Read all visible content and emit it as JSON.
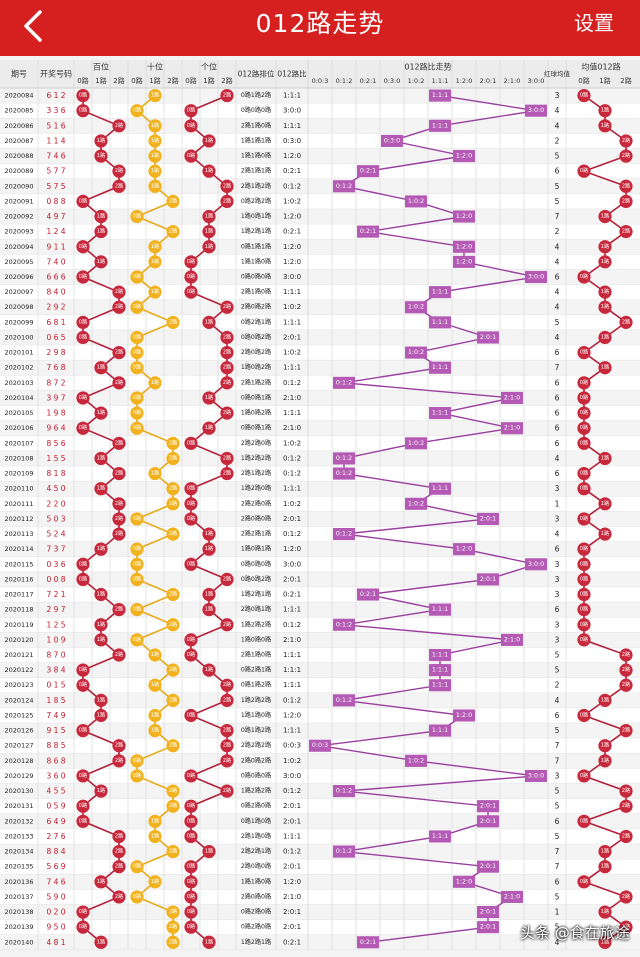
{
  "app": {
    "title": "012路走势",
    "settings_label": "设置"
  },
  "watermark": "头条 @食在旅途",
  "colors": {
    "header": "#d61f1f",
    "red_ball": "#c8283c",
    "yellow_ball": "#f2b21d",
    "purple_cell": "#b45ab4",
    "red_line": "#b0213a",
    "gold_line": "#e6aa1a",
    "purple_line": "#9a3f9f"
  },
  "table": {
    "col_issue": "期号",
    "col_numbers": "开奖号码",
    "group_hundreds": "百位",
    "group_tens": "十位",
    "group_units": "个位",
    "col_pattern": "012路排位",
    "col_ratio": "012路比",
    "group_ratio_trend": "012路比走势",
    "col_redball": "红球均值",
    "group_avg": "均值012路",
    "sub_route": [
      "0路",
      "1路",
      "2路"
    ],
    "ratio_types": [
      "0:0:3",
      "0:1:2",
      "0:2:1",
      "0:3:0",
      "1:0:2",
      "1:1:1",
      "1:2:0",
      "2:0:1",
      "2:1:0",
      "3:0:0"
    ],
    "route_names": [
      "0路",
      "1路",
      "2路"
    ],
    "rows": [
      {
        "issue": "2020084",
        "nums": "6 1 2",
        "ratio_idx": 5,
        "ratio": "1:1:1",
        "pattern": "0路1路2路",
        "avg": "3",
        "avg_route": 0
      },
      {
        "issue": "2020085",
        "nums": "3 3 6",
        "ratio_idx": 9,
        "ratio": "3:0:0",
        "pattern": "0路0路0路",
        "avg": "4",
        "avg_route": 1
      },
      {
        "issue": "2020086",
        "nums": "5 1 6",
        "ratio_idx": 5,
        "ratio": "1:1:1",
        "pattern": "2路1路0路",
        "avg": "4",
        "avg_route": 1
      },
      {
        "issue": "2020087",
        "nums": "1 1 4",
        "ratio_idx": 3,
        "ratio": "0:3:0",
        "pattern": "1路1路1路",
        "avg": "2",
        "avg_route": 2
      },
      {
        "issue": "2020088",
        "nums": "7 4 6",
        "ratio_idx": 6,
        "ratio": "1:2:0",
        "pattern": "1路1路0路",
        "avg": "5",
        "avg_route": 2
      },
      {
        "issue": "2020089",
        "nums": "5 7 7",
        "ratio_idx": 2,
        "ratio": "0:2:1",
        "pattern": "2路1路1路",
        "avg": "6",
        "avg_route": 0
      },
      {
        "issue": "2020090",
        "nums": "5 7 5",
        "ratio_idx": 1,
        "ratio": "0:1:2",
        "pattern": "2路1路2路",
        "avg": "5",
        "avg_route": 2
      },
      {
        "issue": "2020091",
        "nums": "0 8 8",
        "ratio_idx": 4,
        "ratio": "1:0:2",
        "pattern": "0路2路2路",
        "avg": "5",
        "avg_route": 2
      },
      {
        "issue": "2020092",
        "nums": "4 9 7",
        "ratio_idx": 6,
        "ratio": "1:2:0",
        "pattern": "1路0路1路",
        "avg": "7",
        "avg_route": 1
      },
      {
        "issue": "2020093",
        "nums": "1 2 4",
        "ratio_idx": 2,
        "ratio": "0:2:1",
        "pattern": "1路2路1路",
        "avg": "2",
        "avg_route": 2
      },
      {
        "issue": "2020094",
        "nums": "9 1 1",
        "ratio_idx": 6,
        "ratio": "1:2:0",
        "pattern": "0路1路1路",
        "avg": "4",
        "avg_route": 1
      },
      {
        "issue": "2020095",
        "nums": "7 4 0",
        "ratio_idx": 6,
        "ratio": "1:2:0",
        "pattern": "1路1路0路",
        "avg": "4",
        "avg_route": 1
      },
      {
        "issue": "2020096",
        "nums": "6 6 6",
        "ratio_idx": 9,
        "ratio": "3:0:0",
        "pattern": "0路0路0路",
        "avg": "6",
        "avg_route": 0
      },
      {
        "issue": "2020097",
        "nums": "8 4 0",
        "ratio_idx": 5,
        "ratio": "1:1:1",
        "pattern": "2路1路0路",
        "avg": "4",
        "avg_route": 1
      },
      {
        "issue": "2020098",
        "nums": "2 9 2",
        "ratio_idx": 4,
        "ratio": "1:0:2",
        "pattern": "2路0路2路",
        "avg": "4",
        "avg_route": 1
      },
      {
        "issue": "2020099",
        "nums": "6 8 1",
        "ratio_idx": 5,
        "ratio": "1:1:1",
        "pattern": "0路2路1路",
        "avg": "5",
        "avg_route": 2
      },
      {
        "issue": "2020100",
        "nums": "0 6 5",
        "ratio_idx": 7,
        "ratio": "2:0:1",
        "pattern": "0路0路2路",
        "avg": "4",
        "avg_route": 1
      },
      {
        "issue": "2020101",
        "nums": "2 9 8",
        "ratio_idx": 4,
        "ratio": "1:0:2",
        "pattern": "2路0路2路",
        "avg": "6",
        "avg_route": 0
      },
      {
        "issue": "2020102",
        "nums": "7 6 8",
        "ratio_idx": 5,
        "ratio": "1:1:1",
        "pattern": "1路0路2路",
        "avg": "7",
        "avg_route": 1
      },
      {
        "issue": "2020103",
        "nums": "8 7 2",
        "ratio_idx": 1,
        "ratio": "0:1:2",
        "pattern": "2路1路2路",
        "avg": "6",
        "avg_route": 0
      },
      {
        "issue": "2020104",
        "nums": "3 9 7",
        "ratio_idx": 8,
        "ratio": "2:1:0",
        "pattern": "0路0路1路",
        "avg": "6",
        "avg_route": 0
      },
      {
        "issue": "2020105",
        "nums": "1 9 8",
        "ratio_idx": 5,
        "ratio": "1:1:1",
        "pattern": "1路0路2路",
        "avg": "6",
        "avg_route": 0
      },
      {
        "issue": "2020106",
        "nums": "9 6 4",
        "ratio_idx": 8,
        "ratio": "2:1:0",
        "pattern": "0路0路1路",
        "avg": "6",
        "avg_route": 0
      },
      {
        "issue": "2020107",
        "nums": "8 5 6",
        "ratio_idx": 4,
        "ratio": "1:0:2",
        "pattern": "2路2路0路",
        "avg": "6",
        "avg_route": 0
      },
      {
        "issue": "2020108",
        "nums": "1 5 5",
        "ratio_idx": 1,
        "ratio": "0:1:2",
        "pattern": "1路2路2路",
        "avg": "4",
        "avg_route": 1
      },
      {
        "issue": "2020109",
        "nums": "8 1 8",
        "ratio_idx": 1,
        "ratio": "0:1:2",
        "pattern": "2路1路2路",
        "avg": "6",
        "avg_route": 0
      },
      {
        "issue": "2020110",
        "nums": "4 5 0",
        "ratio_idx": 5,
        "ratio": "1:1:1",
        "pattern": "1路2路0路",
        "avg": "3",
        "avg_route": 0
      },
      {
        "issue": "2020111",
        "nums": "2 2 0",
        "ratio_idx": 4,
        "ratio": "1:0:2",
        "pattern": "2路2路0路",
        "avg": "1",
        "avg_route": 1
      },
      {
        "issue": "2020112",
        "nums": "5 0 3",
        "ratio_idx": 7,
        "ratio": "2:0:1",
        "pattern": "2路0路0路",
        "avg": "3",
        "avg_route": 0
      },
      {
        "issue": "2020113",
        "nums": "5 2 4",
        "ratio_idx": 1,
        "ratio": "0:1:2",
        "pattern": "2路2路1路",
        "avg": "4",
        "avg_route": 1
      },
      {
        "issue": "2020114",
        "nums": "7 3 7",
        "ratio_idx": 6,
        "ratio": "1:2:0",
        "pattern": "1路0路1路",
        "avg": "6",
        "avg_route": 0
      },
      {
        "issue": "2020115",
        "nums": "0 3 6",
        "ratio_idx": 9,
        "ratio": "3:0:0",
        "pattern": "0路0路0路",
        "avg": "3",
        "avg_route": 0
      },
      {
        "issue": "2020116",
        "nums": "0 0 8",
        "ratio_idx": 7,
        "ratio": "2:0:1",
        "pattern": "0路0路2路",
        "avg": "3",
        "avg_route": 0
      },
      {
        "issue": "2020117",
        "nums": "7 2 1",
        "ratio_idx": 2,
        "ratio": "0:2:1",
        "pattern": "1路2路1路",
        "avg": "3",
        "avg_route": 0
      },
      {
        "issue": "2020118",
        "nums": "2 9 7",
        "ratio_idx": 5,
        "ratio": "1:1:1",
        "pattern": "2路0路1路",
        "avg": "6",
        "avg_route": 0
      },
      {
        "issue": "2020119",
        "nums": "1 2 5",
        "ratio_idx": 1,
        "ratio": "0:1:2",
        "pattern": "1路2路2路",
        "avg": "3",
        "avg_route": 0
      },
      {
        "issue": "2020120",
        "nums": "1 0 9",
        "ratio_idx": 8,
        "ratio": "2:1:0",
        "pattern": "1路0路0路",
        "avg": "3",
        "avg_route": 0
      },
      {
        "issue": "2020121",
        "nums": "8 7 0",
        "ratio_idx": 5,
        "ratio": "1:1:1",
        "pattern": "2路1路0路",
        "avg": "5",
        "avg_route": 2
      },
      {
        "issue": "2020122",
        "nums": "3 8 4",
        "ratio_idx": 5,
        "ratio": "1:1:1",
        "pattern": "0路2路1路",
        "avg": "5",
        "avg_route": 2
      },
      {
        "issue": "2020123",
        "nums": "0 1 5",
        "ratio_idx": 5,
        "ratio": "1:1:1",
        "pattern": "0路1路2路",
        "avg": "2",
        "avg_route": 2
      },
      {
        "issue": "2020124",
        "nums": "1 8 5",
        "ratio_idx": 1,
        "ratio": "0:1:2",
        "pattern": "1路2路2路",
        "avg": "4",
        "avg_route": 1
      },
      {
        "issue": "2020125",
        "nums": "7 4 9",
        "ratio_idx": 6,
        "ratio": "1:2:0",
        "pattern": "1路1路0路",
        "avg": "6",
        "avg_route": 0
      },
      {
        "issue": "2020126",
        "nums": "9 1 5",
        "ratio_idx": 5,
        "ratio": "1:1:1",
        "pattern": "0路1路2路",
        "avg": "5",
        "avg_route": 2
      },
      {
        "issue": "2020127",
        "nums": "8 8 5",
        "ratio_idx": 0,
        "ratio": "0:0:3",
        "pattern": "2路2路2路",
        "avg": "7",
        "avg_route": 1
      },
      {
        "issue": "2020128",
        "nums": "8 6 8",
        "ratio_idx": 4,
        "ratio": "1:0:2",
        "pattern": "2路0路2路",
        "avg": "7",
        "avg_route": 1
      },
      {
        "issue": "2020129",
        "nums": "3 6 0",
        "ratio_idx": 9,
        "ratio": "3:0:0",
        "pattern": "0路0路0路",
        "avg": "3",
        "avg_route": 0
      },
      {
        "issue": "2020130",
        "nums": "4 5 5",
        "ratio_idx": 1,
        "ratio": "0:1:2",
        "pattern": "1路2路2路",
        "avg": "5",
        "avg_route": 2
      },
      {
        "issue": "2020131",
        "nums": "0 5 9",
        "ratio_idx": 7,
        "ratio": "2:0:1",
        "pattern": "0路2路0路",
        "avg": "5",
        "avg_route": 2
      },
      {
        "issue": "2020132",
        "nums": "6 4 9",
        "ratio_idx": 7,
        "ratio": "2:0:1",
        "pattern": "0路1路0路",
        "avg": "6",
        "avg_route": 0
      },
      {
        "issue": "2020133",
        "nums": "2 7 6",
        "ratio_idx": 5,
        "ratio": "1:1:1",
        "pattern": "2路1路0路",
        "avg": "5",
        "avg_route": 2
      },
      {
        "issue": "2020134",
        "nums": "8 8 4",
        "ratio_idx": 1,
        "ratio": "0:1:2",
        "pattern": "2路2路1路",
        "avg": "7",
        "avg_route": 1
      },
      {
        "issue": "2020135",
        "nums": "5 6 9",
        "ratio_idx": 7,
        "ratio": "2:0:1",
        "pattern": "2路0路0路",
        "avg": "7",
        "avg_route": 1
      },
      {
        "issue": "2020136",
        "nums": "7 4 6",
        "ratio_idx": 6,
        "ratio": "1:2:0",
        "pattern": "1路1路0路",
        "avg": "6",
        "avg_route": 0
      },
      {
        "issue": "2020137",
        "nums": "5 9 0",
        "ratio_idx": 8,
        "ratio": "2:1:0",
        "pattern": "2路0路0路",
        "avg": "5",
        "avg_route": 2
      },
      {
        "issue": "2020138",
        "nums": "0 2 0",
        "ratio_idx": 7,
        "ratio": "2:0:1",
        "pattern": "0路2路0路",
        "avg": "1",
        "avg_route": 1
      },
      {
        "issue": "2020139",
        "nums": "9 5 0",
        "ratio_idx": 7,
        "ratio": "2:0:1",
        "pattern": "0路2路0路",
        "avg": "5",
        "avg_route": 2
      },
      {
        "issue": "2020140",
        "nums": "4 8 1",
        "ratio_idx": 2,
        "ratio": "0:2:1",
        "pattern": "1路2路1路",
        "avg": "4",
        "avg_route": 1
      }
    ]
  }
}
